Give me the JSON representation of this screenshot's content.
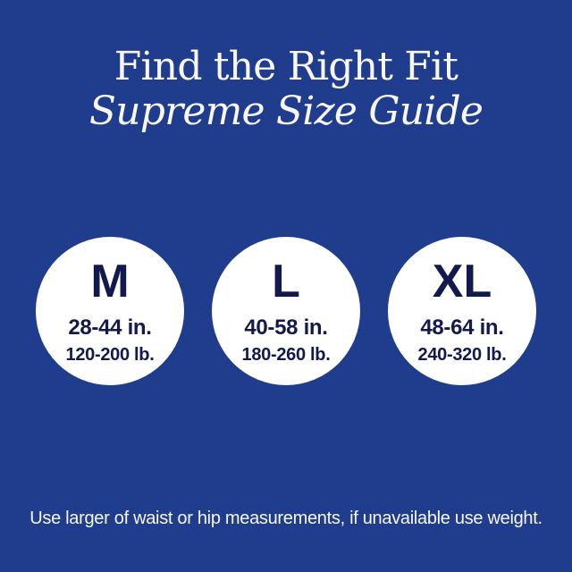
{
  "header": {
    "title": "Find the Right Fit",
    "subtitle": "Supreme Size Guide"
  },
  "sizes": [
    {
      "label": "M",
      "waist_range": "28-44 in.",
      "weight_range": "120-200 lb."
    },
    {
      "label": "L",
      "waist_range": "40-58 in.",
      "weight_range": "180-260 lb."
    },
    {
      "label": "XL",
      "waist_range": "48-64 in.",
      "weight_range": "240-320 lb."
    }
  ],
  "footnote": "Use larger of waist or hip measurements, if unavailable use weight.",
  "colors": {
    "background": "#1f3d8c",
    "circle_fill": "#ffffff",
    "navy_text": "#14194d",
    "light_text": "#f8f7f3"
  }
}
